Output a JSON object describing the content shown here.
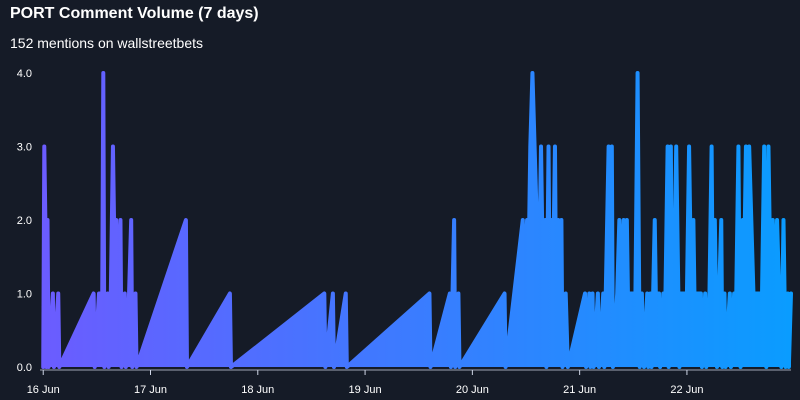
{
  "header": {
    "title": "PORT Comment Volume (7 days)",
    "subtitle": "152 mentions on wallstreetbets"
  },
  "chart_data": {
    "type": "area",
    "title": "PORT Comment Volume (7 days)",
    "subtitle": "152 mentions on wallstreetbets",
    "xlabel": "",
    "ylabel": "",
    "ylim": [
      0,
      4
    ],
    "y_ticks": [
      "0.0",
      "1.0",
      "2.0",
      "3.0",
      "4.0"
    ],
    "x_ticks": [
      "16 Jun",
      "17 Jun",
      "18 Jun",
      "19 Jun",
      "20 Jun",
      "21 Jun",
      "22 Jun"
    ],
    "x_range_days": [
      -0.03,
      6.97
    ],
    "grid": false,
    "legend": "none",
    "colors": {
      "start": "#6b5cff",
      "end": "#0a9cff",
      "background": "#151b27"
    },
    "points": [
      [
        0.0,
        0
      ],
      [
        0.01,
        3
      ],
      [
        0.02,
        2
      ],
      [
        0.03,
        0
      ],
      [
        0.04,
        2
      ],
      [
        0.05,
        0
      ],
      [
        0.09,
        1
      ],
      [
        0.1,
        0
      ],
      [
        0.14,
        1
      ],
      [
        0.15,
        0
      ],
      [
        0.47,
        1
      ],
      [
        0.48,
        0
      ],
      [
        0.52,
        1
      ],
      [
        0.55,
        1
      ],
      [
        0.56,
        4
      ],
      [
        0.57,
        0
      ],
      [
        0.6,
        1
      ],
      [
        0.61,
        0
      ],
      [
        0.63,
        1
      ],
      [
        0.65,
        3
      ],
      [
        0.67,
        1
      ],
      [
        0.68,
        2
      ],
      [
        0.7,
        1
      ],
      [
        0.72,
        2
      ],
      [
        0.73,
        0
      ],
      [
        0.76,
        1
      ],
      [
        0.77,
        0
      ],
      [
        0.8,
        1
      ],
      [
        0.82,
        2
      ],
      [
        0.83,
        0
      ],
      [
        0.86,
        1
      ],
      [
        0.87,
        0
      ],
      [
        1.33,
        2
      ],
      [
        1.34,
        0
      ],
      [
        1.74,
        1
      ],
      [
        1.75,
        0
      ],
      [
        2.62,
        1
      ],
      [
        2.63,
        0
      ],
      [
        2.7,
        1
      ],
      [
        2.71,
        0
      ],
      [
        2.82,
        1
      ],
      [
        2.83,
        0
      ],
      [
        3.6,
        1
      ],
      [
        3.61,
        0
      ],
      [
        3.79,
        1
      ],
      [
        3.8,
        0
      ],
      [
        3.83,
        2
      ],
      [
        3.84,
        0
      ],
      [
        3.87,
        1
      ],
      [
        3.88,
        0
      ],
      [
        4.3,
        1
      ],
      [
        4.31,
        0
      ],
      [
        4.47,
        2
      ],
      [
        4.48,
        1
      ],
      [
        4.51,
        2
      ],
      [
        4.52,
        1
      ],
      [
        4.54,
        3
      ],
      [
        4.56,
        4
      ],
      [
        4.58,
        3
      ],
      [
        4.6,
        2
      ],
      [
        4.62,
        1
      ],
      [
        4.64,
        3
      ],
      [
        4.66,
        1
      ],
      [
        4.68,
        2
      ],
      [
        4.69,
        0
      ],
      [
        4.71,
        3
      ],
      [
        4.72,
        1
      ],
      [
        4.74,
        2
      ],
      [
        4.75,
        1
      ],
      [
        4.77,
        3
      ],
      [
        4.78,
        1
      ],
      [
        4.8,
        2
      ],
      [
        4.81,
        1
      ],
      [
        4.83,
        2
      ],
      [
        4.84,
        0
      ],
      [
        4.87,
        1
      ],
      [
        4.89,
        0
      ],
      [
        5.05,
        1
      ],
      [
        5.06,
        0
      ],
      [
        5.09,
        1
      ],
      [
        5.1,
        0
      ],
      [
        5.12,
        1
      ],
      [
        5.13,
        0
      ],
      [
        5.17,
        1
      ],
      [
        5.18,
        0
      ],
      [
        5.22,
        1
      ],
      [
        5.23,
        0
      ],
      [
        5.27,
        3
      ],
      [
        5.28,
        2
      ],
      [
        5.3,
        3
      ],
      [
        5.31,
        0
      ],
      [
        5.35,
        1
      ],
      [
        5.37,
        2
      ],
      [
        5.4,
        1
      ],
      [
        5.41,
        2
      ],
      [
        5.43,
        1
      ],
      [
        5.44,
        2
      ],
      [
        5.45,
        1
      ],
      [
        5.48,
        1
      ],
      [
        5.5,
        1
      ],
      [
        5.52,
        1
      ],
      [
        5.54,
        4
      ],
      [
        5.56,
        0
      ],
      [
        5.58,
        1
      ],
      [
        5.6,
        0
      ],
      [
        5.63,
        1
      ],
      [
        5.64,
        0
      ],
      [
        5.66,
        1
      ],
      [
        5.67,
        0
      ],
      [
        5.7,
        2
      ],
      [
        5.71,
        1
      ],
      [
        5.74,
        1
      ],
      [
        5.75,
        0
      ],
      [
        5.78,
        1
      ],
      [
        5.8,
        1
      ],
      [
        5.82,
        3
      ],
      [
        5.83,
        0
      ],
      [
        5.85,
        3
      ],
      [
        5.86,
        1
      ],
      [
        5.88,
        1
      ],
      [
        5.9,
        3
      ],
      [
        5.91,
        2
      ],
      [
        5.93,
        0
      ],
      [
        5.94,
        1
      ],
      [
        5.96,
        1
      ],
      [
        6.0,
        1
      ],
      [
        6.02,
        3
      ],
      [
        6.04,
        1
      ],
      [
        6.06,
        2
      ],
      [
        6.07,
        1
      ],
      [
        6.09,
        1
      ],
      [
        6.1,
        1
      ],
      [
        6.13,
        1
      ],
      [
        6.14,
        0
      ],
      [
        6.17,
        1
      ],
      [
        6.18,
        0
      ],
      [
        6.21,
        1
      ],
      [
        6.23,
        3
      ],
      [
        6.24,
        1
      ],
      [
        6.26,
        2
      ],
      [
        6.28,
        0
      ],
      [
        6.3,
        1
      ],
      [
        6.32,
        2
      ],
      [
        6.33,
        0
      ],
      [
        6.35,
        1
      ],
      [
        6.36,
        0
      ],
      [
        6.4,
        1
      ],
      [
        6.41,
        0
      ],
      [
        6.44,
        1
      ],
      [
        6.46,
        1
      ],
      [
        6.48,
        3
      ],
      [
        6.49,
        1
      ],
      [
        6.5,
        0
      ],
      [
        6.52,
        2
      ],
      [
        6.53,
        1
      ],
      [
        6.55,
        3
      ],
      [
        6.56,
        1
      ],
      [
        6.58,
        3
      ],
      [
        6.6,
        2
      ],
      [
        6.62,
        1
      ],
      [
        6.63,
        1
      ],
      [
        6.65,
        1
      ],
      [
        6.68,
        1
      ],
      [
        6.7,
        1
      ],
      [
        6.72,
        3
      ],
      [
        6.74,
        0
      ],
      [
        6.76,
        3
      ],
      [
        6.78,
        1
      ],
      [
        6.8,
        2
      ],
      [
        6.82,
        1
      ],
      [
        6.84,
        2
      ],
      [
        6.86,
        1
      ],
      [
        6.88,
        0
      ],
      [
        6.9,
        2
      ],
      [
        6.92,
        0
      ],
      [
        6.94,
        1
      ],
      [
        6.95,
        0
      ],
      [
        6.97,
        1
      ]
    ]
  }
}
